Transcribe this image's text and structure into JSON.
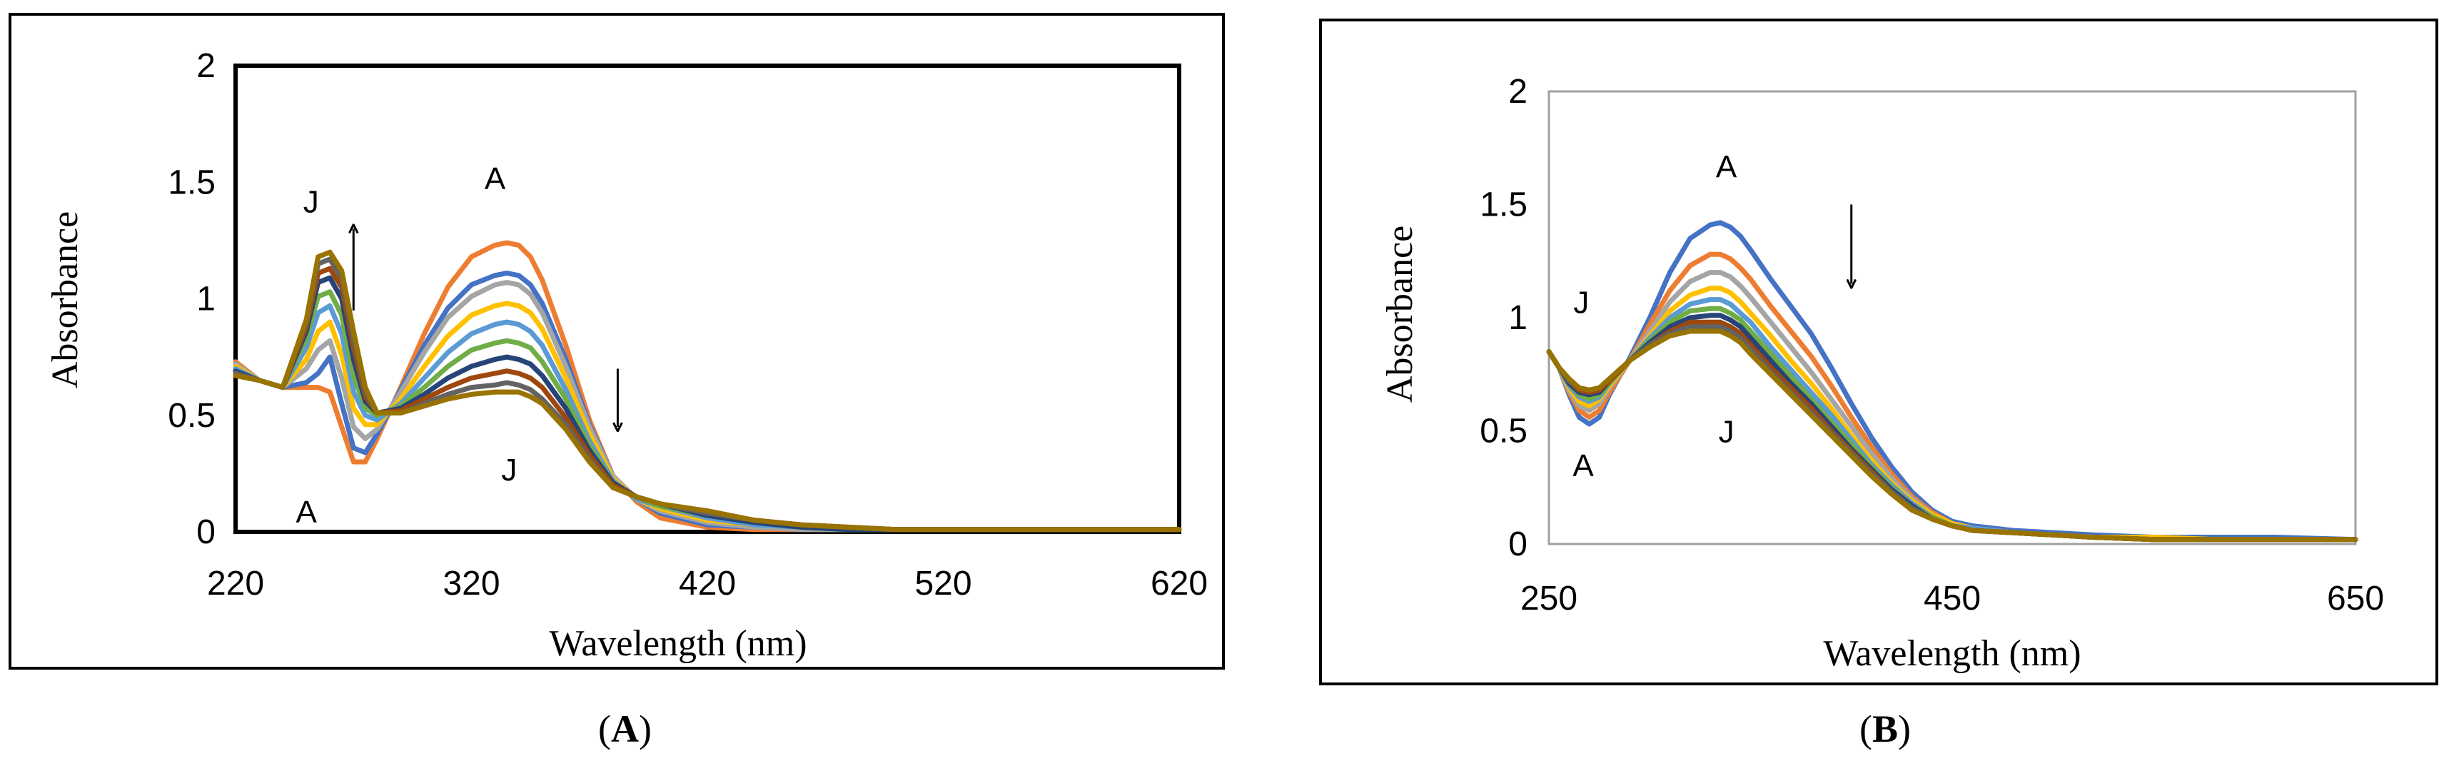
{
  "chart_data": [
    {
      "type": "line",
      "panel_label": "A",
      "xlabel": "Wavelength (nm)",
      "ylabel": "Absorbance",
      "xlim": [
        220,
        620
      ],
      "ylim": [
        0,
        2
      ],
      "x_ticks": [
        "220",
        "320",
        "420",
        "520",
        "620"
      ],
      "y_ticks": [
        "0",
        "0.5",
        "1",
        "1.5",
        "2"
      ],
      "grid": false,
      "x": [
        220,
        230,
        240,
        250,
        255,
        260,
        265,
        270,
        275,
        280,
        290,
        300,
        310,
        320,
        330,
        335,
        340,
        345,
        350,
        360,
        370,
        380,
        390,
        400,
        420,
        440,
        460,
        480,
        500,
        520,
        540,
        560,
        580,
        600,
        620
      ],
      "series": [
        {
          "color": "#ed7d31",
          "values": [
            0.73,
            0.65,
            0.62,
            0.62,
            0.62,
            0.6,
            0.45,
            0.3,
            0.3,
            0.4,
            0.62,
            0.85,
            1.05,
            1.18,
            1.23,
            1.24,
            1.23,
            1.18,
            1.08,
            0.8,
            0.48,
            0.24,
            0.13,
            0.06,
            0.02,
            0.01,
            0.01,
            0.01,
            0.01,
            0.01,
            0.01,
            0.01,
            0.01,
            0.01,
            0.01
          ]
        },
        {
          "color": "#4472c4",
          "values": [
            0.72,
            0.65,
            0.62,
            0.64,
            0.68,
            0.75,
            0.55,
            0.36,
            0.34,
            0.42,
            0.61,
            0.8,
            0.96,
            1.06,
            1.1,
            1.11,
            1.1,
            1.06,
            0.98,
            0.74,
            0.46,
            0.24,
            0.14,
            0.08,
            0.03,
            0.02,
            0.01,
            0.01,
            0.01,
            0.01,
            0.01,
            0.01,
            0.01,
            0.01,
            0.01
          ]
        },
        {
          "color": "#a5a5a5",
          "values": [
            0.72,
            0.65,
            0.62,
            0.7,
            0.78,
            0.82,
            0.66,
            0.45,
            0.4,
            0.44,
            0.6,
            0.77,
            0.92,
            1.01,
            1.06,
            1.07,
            1.06,
            1.02,
            0.94,
            0.71,
            0.45,
            0.24,
            0.14,
            0.09,
            0.04,
            0.02,
            0.01,
            0.01,
            0.01,
            0.01,
            0.01,
            0.01,
            0.01,
            0.01,
            0.01
          ]
        },
        {
          "color": "#ffc000",
          "values": [
            0.71,
            0.65,
            0.62,
            0.74,
            0.86,
            0.9,
            0.76,
            0.53,
            0.46,
            0.46,
            0.57,
            0.71,
            0.84,
            0.93,
            0.97,
            0.98,
            0.97,
            0.94,
            0.87,
            0.66,
            0.42,
            0.23,
            0.14,
            0.1,
            0.05,
            0.03,
            0.02,
            0.01,
            0.01,
            0.01,
            0.01,
            0.01,
            0.01,
            0.01,
            0.01
          ]
        },
        {
          "color": "#5b9bd5",
          "values": [
            0.7,
            0.65,
            0.62,
            0.79,
            0.94,
            0.97,
            0.85,
            0.6,
            0.5,
            0.48,
            0.55,
            0.66,
            0.77,
            0.85,
            0.89,
            0.9,
            0.89,
            0.86,
            0.8,
            0.61,
            0.39,
            0.22,
            0.14,
            0.11,
            0.06,
            0.03,
            0.02,
            0.01,
            0.01,
            0.01,
            0.01,
            0.01,
            0.01,
            0.01,
            0.01
          ]
        },
        {
          "color": "#70ad47",
          "values": [
            0.69,
            0.65,
            0.62,
            0.83,
            1.01,
            1.03,
            0.93,
            0.67,
            0.53,
            0.5,
            0.54,
            0.62,
            0.71,
            0.78,
            0.81,
            0.82,
            0.81,
            0.79,
            0.73,
            0.57,
            0.37,
            0.21,
            0.15,
            0.11,
            0.07,
            0.04,
            0.02,
            0.01,
            0.01,
            0.01,
            0.01,
            0.01,
            0.01,
            0.01,
            0.01
          ]
        },
        {
          "color": "#264478",
          "values": [
            0.69,
            0.65,
            0.62,
            0.86,
            1.07,
            1.09,
            1.0,
            0.74,
            0.56,
            0.51,
            0.53,
            0.59,
            0.66,
            0.71,
            0.74,
            0.75,
            0.74,
            0.72,
            0.67,
            0.53,
            0.35,
            0.21,
            0.15,
            0.12,
            0.07,
            0.04,
            0.02,
            0.01,
            0.01,
            0.01,
            0.01,
            0.01,
            0.01,
            0.01,
            0.01
          ]
        },
        {
          "color": "#9e480e",
          "values": [
            0.68,
            0.65,
            0.62,
            0.88,
            1.11,
            1.13,
            1.05,
            0.79,
            0.58,
            0.51,
            0.52,
            0.57,
            0.62,
            0.66,
            0.68,
            0.69,
            0.68,
            0.66,
            0.62,
            0.49,
            0.33,
            0.2,
            0.15,
            0.12,
            0.08,
            0.05,
            0.03,
            0.02,
            0.01,
            0.01,
            0.01,
            0.01,
            0.01,
            0.01,
            0.01
          ]
        },
        {
          "color": "#636363",
          "values": [
            0.68,
            0.65,
            0.62,
            0.9,
            1.15,
            1.17,
            1.09,
            0.83,
            0.6,
            0.51,
            0.51,
            0.55,
            0.59,
            0.62,
            0.63,
            0.64,
            0.63,
            0.61,
            0.57,
            0.46,
            0.31,
            0.19,
            0.15,
            0.12,
            0.08,
            0.05,
            0.03,
            0.02,
            0.01,
            0.01,
            0.01,
            0.01,
            0.01,
            0.01,
            0.01
          ]
        },
        {
          "color": "#997300",
          "values": [
            0.67,
            0.65,
            0.62,
            0.91,
            1.18,
            1.2,
            1.12,
            0.86,
            0.62,
            0.51,
            0.51,
            0.54,
            0.57,
            0.59,
            0.6,
            0.6,
            0.6,
            0.58,
            0.55,
            0.44,
            0.3,
            0.19,
            0.15,
            0.12,
            0.09,
            0.05,
            0.03,
            0.02,
            0.01,
            0.01,
            0.01,
            0.01,
            0.01,
            0.01,
            0.01
          ]
        }
      ],
      "annotations": [
        {
          "text": "J",
          "x": 252,
          "y": 1.37
        },
        {
          "text": "A",
          "x": 330,
          "y": 1.47
        },
        {
          "text": "A",
          "x": 250,
          "y": 0.04
        },
        {
          "text": "J",
          "x": 336,
          "y": 0.22
        }
      ],
      "arrows": [
        {
          "direction": "up",
          "x": 270,
          "y_from": 0.95,
          "y_to": 1.3
        },
        {
          "direction": "down",
          "x": 382,
          "y_from": 0.7,
          "y_to": 0.45
        }
      ]
    },
    {
      "type": "line",
      "panel_label": "B",
      "xlabel": "Wavelength (nm)",
      "ylabel": "Absorbance",
      "xlim": [
        250,
        650
      ],
      "ylim": [
        0,
        2
      ],
      "x_ticks": [
        "250",
        "450",
        "650"
      ],
      "y_ticks": [
        "0",
        "0.5",
        "1",
        "1.5",
        "2"
      ],
      "grid": false,
      "x": [
        250,
        255,
        260,
        265,
        270,
        275,
        280,
        290,
        300,
        310,
        320,
        330,
        335,
        340,
        345,
        350,
        360,
        370,
        380,
        390,
        400,
        410,
        420,
        430,
        440,
        450,
        460,
        480,
        500,
        520,
        550,
        580,
        610,
        650
      ],
      "series": [
        {
          "color": "#4472c4",
          "values": [
            0.85,
            0.78,
            0.66,
            0.56,
            0.53,
            0.56,
            0.66,
            0.82,
            1.0,
            1.2,
            1.35,
            1.41,
            1.42,
            1.4,
            1.36,
            1.3,
            1.17,
            1.05,
            0.93,
            0.78,
            0.62,
            0.47,
            0.34,
            0.23,
            0.15,
            0.1,
            0.08,
            0.06,
            0.05,
            0.04,
            0.03,
            0.03,
            0.03,
            0.02
          ]
        },
        {
          "color": "#ed7d31",
          "values": [
            0.85,
            0.78,
            0.67,
            0.59,
            0.56,
            0.59,
            0.67,
            0.81,
            0.97,
            1.12,
            1.23,
            1.28,
            1.28,
            1.26,
            1.22,
            1.17,
            1.05,
            0.94,
            0.83,
            0.7,
            0.56,
            0.43,
            0.31,
            0.21,
            0.14,
            0.09,
            0.07,
            0.05,
            0.04,
            0.03,
            0.03,
            0.02,
            0.02,
            0.02
          ]
        },
        {
          "color": "#a5a5a5",
          "values": [
            0.85,
            0.78,
            0.68,
            0.61,
            0.59,
            0.62,
            0.69,
            0.81,
            0.94,
            1.07,
            1.16,
            1.2,
            1.2,
            1.18,
            1.14,
            1.09,
            0.98,
            0.87,
            0.76,
            0.64,
            0.52,
            0.4,
            0.29,
            0.2,
            0.13,
            0.09,
            0.07,
            0.05,
            0.04,
            0.03,
            0.03,
            0.02,
            0.02,
            0.02
          ]
        },
        {
          "color": "#ffc000",
          "values": [
            0.85,
            0.78,
            0.69,
            0.63,
            0.61,
            0.64,
            0.7,
            0.81,
            0.92,
            1.03,
            1.1,
            1.13,
            1.13,
            1.11,
            1.07,
            1.02,
            0.92,
            0.81,
            0.71,
            0.6,
            0.48,
            0.37,
            0.27,
            0.19,
            0.13,
            0.09,
            0.07,
            0.05,
            0.04,
            0.03,
            0.03,
            0.02,
            0.02,
            0.02
          ]
        },
        {
          "color": "#5b9bd5",
          "values": [
            0.85,
            0.78,
            0.7,
            0.65,
            0.63,
            0.65,
            0.71,
            0.81,
            0.91,
            1.0,
            1.06,
            1.08,
            1.08,
            1.06,
            1.02,
            0.98,
            0.87,
            0.77,
            0.67,
            0.57,
            0.46,
            0.35,
            0.26,
            0.18,
            0.12,
            0.08,
            0.07,
            0.05,
            0.04,
            0.03,
            0.02,
            0.02,
            0.02,
            0.02
          ]
        },
        {
          "color": "#70ad47",
          "values": [
            0.85,
            0.78,
            0.71,
            0.66,
            0.64,
            0.66,
            0.71,
            0.81,
            0.9,
            0.98,
            1.03,
            1.04,
            1.04,
            1.02,
            0.99,
            0.94,
            0.84,
            0.74,
            0.64,
            0.54,
            0.44,
            0.34,
            0.25,
            0.17,
            0.12,
            0.08,
            0.06,
            0.05,
            0.04,
            0.03,
            0.02,
            0.02,
            0.02,
            0.02
          ]
        },
        {
          "color": "#264478",
          "values": [
            0.85,
            0.78,
            0.71,
            0.67,
            0.66,
            0.67,
            0.72,
            0.81,
            0.89,
            0.96,
            1.0,
            1.01,
            1.01,
            0.99,
            0.96,
            0.91,
            0.81,
            0.71,
            0.62,
            0.52,
            0.42,
            0.33,
            0.24,
            0.17,
            0.11,
            0.08,
            0.06,
            0.05,
            0.04,
            0.03,
            0.02,
            0.02,
            0.02,
            0.02
          ]
        },
        {
          "color": "#9e480e",
          "values": [
            0.85,
            0.78,
            0.72,
            0.68,
            0.67,
            0.68,
            0.72,
            0.81,
            0.88,
            0.94,
            0.98,
            0.98,
            0.98,
            0.96,
            0.93,
            0.88,
            0.78,
            0.69,
            0.6,
            0.5,
            0.41,
            0.32,
            0.23,
            0.16,
            0.11,
            0.08,
            0.06,
            0.05,
            0.04,
            0.03,
            0.02,
            0.02,
            0.02,
            0.02
          ]
        },
        {
          "color": "#636363",
          "values": [
            0.85,
            0.78,
            0.72,
            0.69,
            0.68,
            0.69,
            0.73,
            0.81,
            0.88,
            0.93,
            0.96,
            0.96,
            0.96,
            0.94,
            0.91,
            0.86,
            0.76,
            0.67,
            0.58,
            0.49,
            0.4,
            0.31,
            0.23,
            0.16,
            0.11,
            0.08,
            0.06,
            0.05,
            0.04,
            0.03,
            0.02,
            0.02,
            0.02,
            0.02
          ]
        },
        {
          "color": "#997300",
          "values": [
            0.85,
            0.78,
            0.73,
            0.69,
            0.68,
            0.69,
            0.73,
            0.81,
            0.87,
            0.92,
            0.94,
            0.94,
            0.94,
            0.92,
            0.89,
            0.84,
            0.75,
            0.66,
            0.57,
            0.48,
            0.39,
            0.3,
            0.22,
            0.15,
            0.11,
            0.08,
            0.06,
            0.05,
            0.04,
            0.03,
            0.02,
            0.02,
            0.02,
            0.02
          ]
        }
      ],
      "annotations": [
        {
          "text": "A",
          "x": 338,
          "y": 1.62
        },
        {
          "text": "J",
          "x": 266,
          "y": 1.02
        },
        {
          "text": "A",
          "x": 267,
          "y": 0.3
        },
        {
          "text": "J",
          "x": 338,
          "y": 0.45
        }
      ],
      "arrows": [
        {
          "direction": "down",
          "x": 400,
          "y_from": 1.5,
          "y_to": 1.15
        }
      ]
    }
  ]
}
